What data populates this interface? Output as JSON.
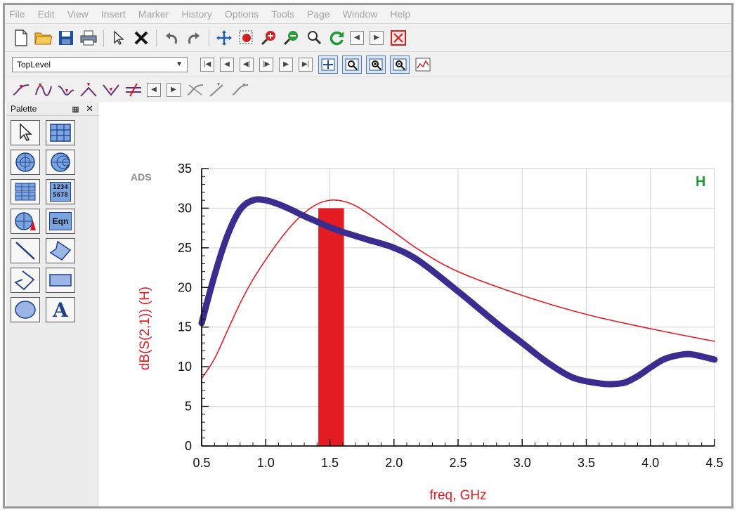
{
  "menu": [
    "File",
    "Edit",
    "View",
    "Insert",
    "Marker",
    "History",
    "Options",
    "Tools",
    "Page",
    "Window",
    "Help"
  ],
  "toolbar1": {
    "icons": [
      "new-file-icon",
      "open-folder-icon",
      "save-icon",
      "print-icon",
      "select-pointer-icon",
      "delete-icon",
      "undo-icon",
      "redo-icon",
      "pan-icon",
      "zoom-area-icon",
      "zoom-in-icon",
      "zoom-out-icon",
      "magnifier-icon",
      "refresh-icon",
      "previous-icon",
      "next-icon",
      "close-window-icon"
    ]
  },
  "toolbar2": {
    "level_select": "TopLevel",
    "nav_icons": [
      "first-page-icon",
      "previous-page-icon",
      "step-back-icon",
      "step-forward-icon",
      "next-page-icon",
      "last-page-icon"
    ],
    "zoom_icons": [
      "zoom-fit-icon",
      "zoom-area-icon",
      "zoom-in-icon",
      "zoom-out-icon",
      "plot-options-icon"
    ]
  },
  "toolbar3": {
    "icons": [
      "marker-normal-icon",
      "marker-peak-icon",
      "marker-valley-icon",
      "marker-max-icon",
      "marker-min-icon",
      "marker-delta-icon",
      "marker-prev-icon",
      "marker-next-icon",
      "marker-line-icon",
      "marker-slope-icon",
      "marker-curve-icon"
    ]
  },
  "palette": {
    "title": "Palette",
    "items": [
      "pointer-tool-icon",
      "rectangular-plot-icon",
      "polar-plot-icon",
      "smith-chart-icon",
      "stacked-plot-icon",
      "list-icon",
      "antenna-plot-icon",
      "equation-icon",
      "line-tool-icon",
      "polygon-tool-icon",
      "polyline-tool-icon",
      "rectangle-tool-icon",
      "ellipse-tool-icon",
      "text-tool-icon"
    ],
    "list_text_1": "1234",
    "list_text_2": "5678",
    "eqn_text": "Eqn",
    "text_tool_glyph": "A"
  },
  "plot": {
    "watermark": "ADS",
    "corner_label": "H",
    "accent_color": "#e31b23",
    "thick_color": "#3a2d8f",
    "label_color": "#1e9a32"
  },
  "chart_data": {
    "type": "line",
    "xlabel": "freq, GHz",
    "ylabel": "dB(S(2,1)) (H)",
    "xlim": [
      0.5,
      4.5
    ],
    "ylim": [
      0,
      35
    ],
    "x_ticks": [
      "0.5",
      "1.0",
      "1.5",
      "2.0",
      "2.5",
      "3.0",
      "3.5",
      "4.0",
      "4.5"
    ],
    "y_ticks": [
      "0",
      "5",
      "10",
      "15",
      "20",
      "25",
      "30",
      "35"
    ],
    "grid": true,
    "series": [
      {
        "style": "thin-red",
        "x": [
          0.5,
          0.6,
          0.7,
          0.8,
          0.9,
          1.0,
          1.1,
          1.2,
          1.3,
          1.4,
          1.5,
          1.6,
          1.7,
          1.8,
          2.0,
          2.2,
          2.5,
          3.0,
          3.5,
          4.0,
          4.5
        ],
        "y": [
          8.5,
          11,
          14.5,
          18,
          21,
          23.5,
          25.8,
          27.8,
          29.4,
          30.5,
          31,
          30.9,
          30.3,
          29.3,
          27,
          24.7,
          22,
          19,
          16.6,
          14.8,
          13.2
        ]
      },
      {
        "style": "thick-blue",
        "x": [
          0.5,
          0.6,
          0.7,
          0.8,
          0.9,
          1.0,
          1.1,
          1.2,
          1.3,
          1.4,
          1.5,
          1.6,
          1.7,
          1.8,
          2.0,
          2.2,
          2.5,
          2.8,
          3.0,
          3.2,
          3.4,
          3.6,
          3.7,
          3.8,
          3.9,
          4.0,
          4.1,
          4.2,
          4.3,
          4.4,
          4.5
        ],
        "y": [
          15.5,
          21.5,
          26.5,
          29.8,
          31,
          31,
          30.5,
          29.8,
          29,
          28.3,
          27.6,
          27,
          26.5,
          26,
          25,
          23.3,
          19.5,
          15.5,
          13,
          10.5,
          8.6,
          7.9,
          7.8,
          8,
          8.8,
          9.9,
          10.9,
          11.4,
          11.6,
          11.3,
          10.9
        ]
      }
    ],
    "bands": [
      {
        "x_from": 1.41,
        "x_to": 1.61,
        "y_from": 0,
        "y_to": 30
      }
    ]
  }
}
